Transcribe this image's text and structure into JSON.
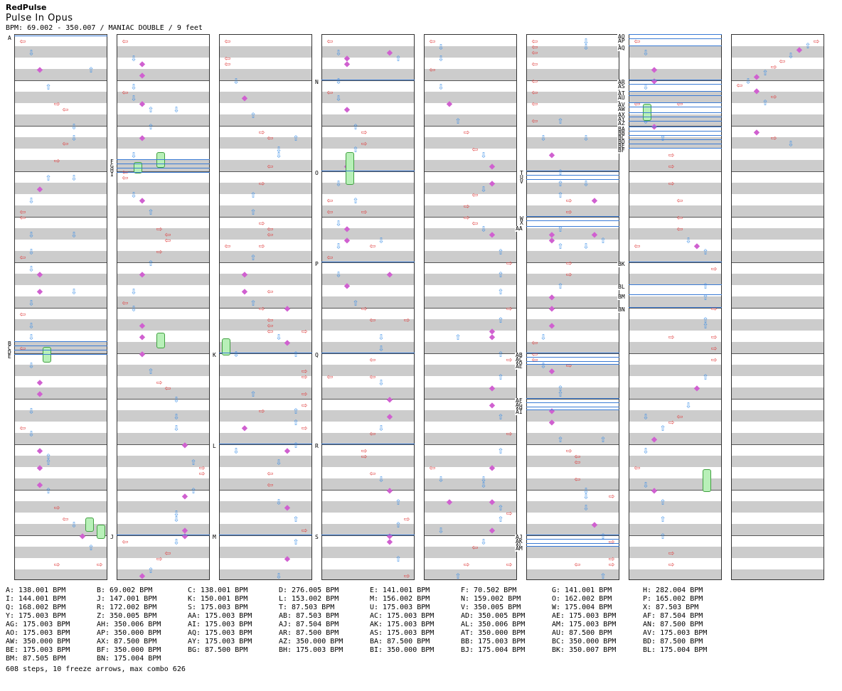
{
  "header": {
    "artist": "RedPulse",
    "title": "Pulse In Opus",
    "meta": "BPM: 69.002 - 350.007 / MANIAC DOUBLE / 9 feet"
  },
  "colors": {
    "left_right": "#e04040",
    "up_down": "#3a8ee6",
    "mid": "#d060d0",
    "freeze": "#b8f0b8",
    "bpm_line": "#3a7bd5"
  },
  "segment_labels": [
    "A",
    "B",
    "C",
    "D",
    "E",
    "F",
    "G",
    "H",
    "I",
    "J",
    "K",
    "L",
    "M",
    "N",
    "O",
    "P",
    "Q",
    "R",
    "S",
    "T",
    "U",
    "V",
    "W",
    "X",
    "Y",
    "Z",
    "AA",
    "AB",
    "AC",
    "AD",
    "AE",
    "AF",
    "AG",
    "AH",
    "AI",
    "AJ",
    "AK",
    "AL",
    "AM",
    "AN",
    "AO",
    "AP",
    "AQ",
    "AR",
    "AS",
    "AT",
    "AU",
    "AV",
    "AW",
    "AX",
    "AY",
    "AZ",
    "BA",
    "BB",
    "BC",
    "BD",
    "BE",
    "BF",
    "BG",
    "BH",
    "BI",
    "BJ",
    "BK",
    "BL",
    "BM",
    "BN"
  ],
  "bpm_legend": [
    [
      "A: 138.001 BPM",
      "B: 69.002 BPM",
      "C: 138.001 BPM",
      "D: 276.005 BPM",
      "E: 141.001 BPM",
      "F: 70.502 BPM",
      "G: 141.001 BPM",
      "H: 282.004 BPM"
    ],
    [
      "I: 144.001 BPM",
      "J: 147.001 BPM",
      "K: 150.001 BPM",
      "L: 153.002 BPM",
      "M: 156.002 BPM",
      "N: 159.002 BPM",
      "O: 162.002 BPM",
      "P: 165.002 BPM"
    ],
    [
      "Q: 168.002 BPM",
      "R: 172.002 BPM",
      "S: 175.003 BPM",
      "T: 87.503 BPM",
      "U: 175.003 BPM",
      "V: 350.005 BPM",
      "W: 175.004 BPM",
      "X: 87.503 BPM"
    ],
    [
      "Y: 175.003 BPM",
      "Z: 350.005 BPM",
      "AA: 175.003 BPM",
      "AB: 87.503 BPM",
      "AC: 175.003 BPM",
      "AD: 350.005 BPM",
      "AE: 175.003 BPM",
      "AF: 87.504 BPM"
    ],
    [
      "AG: 175.003 BPM",
      "AH: 350.006 BPM",
      "AI: 175.003 BPM",
      "AJ: 87.504 BPM",
      "AK: 175.003 BPM",
      "AL: 350.006 BPM",
      "AM: 175.003 BPM",
      "AN: 87.500 BPM"
    ],
    [
      "AO: 175.003 BPM",
      "AP: 350.000 BPM",
      "AQ: 175.003 BPM",
      "AR: 87.500 BPM",
      "AS: 175.003 BPM",
      "AT: 350.000 BPM",
      "AU: 87.500 BPM",
      "AV: 175.003 BPM"
    ],
    [
      "AW: 350.000 BPM",
      "AX: 87.500 BPM",
      "AY: 175.003 BPM",
      "AZ: 350.000 BPM",
      "BA: 87.500 BPM",
      "BB: 175.003 BPM",
      "BC: 350.000 BPM",
      "BD: 87.500 BPM"
    ],
    [
      "BE: 175.003 BPM",
      "BF: 350.000 BPM",
      "BG: 87.500 BPM",
      "BH: 175.003 BPM",
      "BI: 350.000 BPM",
      "BJ: 175.004 BPM",
      "BK: 350.007 BPM",
      "BL: 175.004 BPM"
    ],
    [
      "BM: 87.505 BPM",
      "BN: 175.004 BPM"
    ]
  ],
  "footer": "608 steps, 10 freeze arrows, max combo 626"
}
